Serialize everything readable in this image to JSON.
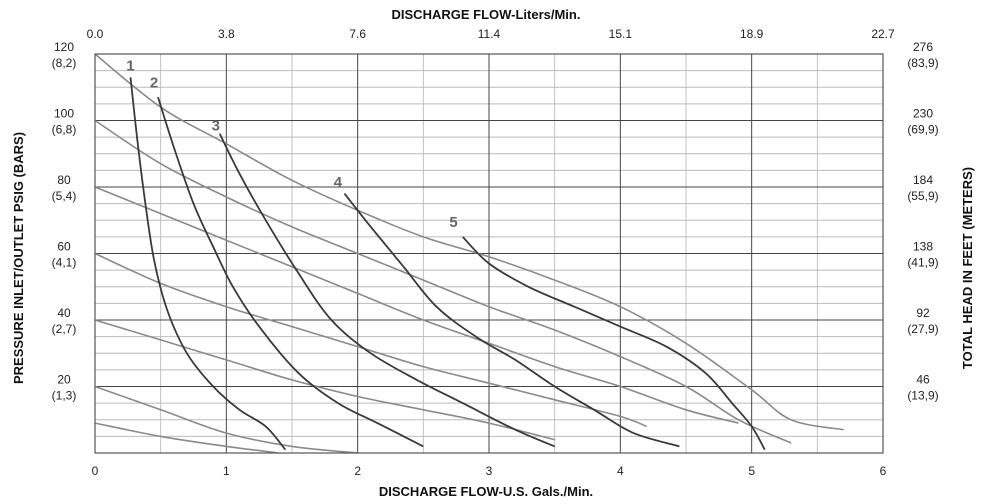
{
  "chart_data": {
    "type": "line",
    "title": "",
    "top_axis": {
      "label": "DISCHARGE FLOW-Liters/Min.",
      "ticks": [
        "0.0",
        "3.8",
        "7.6",
        "11.4",
        "15.1",
        "18.9",
        "22.7"
      ]
    },
    "bottom_axis": {
      "label": "DISCHARGE FLOW-U.S. Gals./Min.",
      "ticks": [
        "0",
        "1",
        "2",
        "3",
        "4",
        "5",
        "6"
      ],
      "xlim": [
        0,
        6
      ]
    },
    "left_axis": {
      "label": "PRESSURE INLET/OUTLET PSIG (BARS)",
      "ylim": [
        0,
        120
      ],
      "ticks": [
        {
          "value": 120,
          "line1": "120",
          "line2": "(8,2)"
        },
        {
          "value": 100,
          "line1": "100",
          "line2": "(6,8)"
        },
        {
          "value": 80,
          "line1": "80",
          "line2": "(5,4)"
        },
        {
          "value": 60,
          "line1": "60",
          "line2": "(4,1)"
        },
        {
          "value": 40,
          "line1": "40",
          "line2": "(2,7)"
        },
        {
          "value": 20,
          "line1": "20",
          "line2": "(1,3)"
        }
      ]
    },
    "right_axis": {
      "label": "TOTAL HEAD IN FEET (METERS)",
      "ticks": [
        {
          "value": 120,
          "line1": "276",
          "line2": "(83,9)"
        },
        {
          "value": 100,
          "line1": "230",
          "line2": "(69,9)"
        },
        {
          "value": 80,
          "line1": "184",
          "line2": "(55,9)"
        },
        {
          "value": 60,
          "line1": "138",
          "line2": "(41,9)"
        },
        {
          "value": 40,
          "line1": "92",
          "line2": "(27,9)"
        },
        {
          "value": 20,
          "line1": "46",
          "line2": "(13,9)"
        }
      ]
    },
    "grid": true,
    "series_air_pressure_lines": [
      {
        "points": [
          [
            0,
            120
          ],
          [
            0.5,
            104
          ],
          [
            1.0,
            93
          ],
          [
            1.5,
            82
          ],
          [
            2.0,
            73
          ],
          [
            2.5,
            65
          ],
          [
            3.0,
            59
          ],
          [
            3.5,
            52
          ],
          [
            4.0,
            44
          ],
          [
            4.5,
            33
          ],
          [
            5.0,
            19
          ],
          [
            5.3,
            10
          ],
          [
            5.7,
            7
          ]
        ]
      },
      {
        "points": [
          [
            0,
            100
          ],
          [
            0.5,
            87
          ],
          [
            1.0,
            77
          ],
          [
            1.5,
            68
          ],
          [
            2.0,
            60
          ],
          [
            2.5,
            52
          ],
          [
            3.0,
            44
          ],
          [
            3.5,
            37
          ],
          [
            4.0,
            29
          ],
          [
            4.5,
            20
          ],
          [
            4.9,
            10
          ],
          [
            5.3,
            3
          ]
        ]
      },
      {
        "points": [
          [
            0,
            80
          ],
          [
            0.5,
            72
          ],
          [
            1.0,
            64
          ],
          [
            1.5,
            56
          ],
          [
            2.0,
            48
          ],
          [
            2.5,
            40
          ],
          [
            3.0,
            33
          ],
          [
            3.5,
            26
          ],
          [
            4.0,
            20
          ],
          [
            4.5,
            13
          ],
          [
            4.9,
            9
          ]
        ]
      },
      {
        "points": [
          [
            0,
            60
          ],
          [
            0.5,
            51
          ],
          [
            1.0,
            44
          ],
          [
            1.5,
            38
          ],
          [
            2.0,
            32
          ],
          [
            2.5,
            26
          ],
          [
            3.0,
            21
          ],
          [
            3.5,
            16
          ],
          [
            4.0,
            11
          ],
          [
            4.2,
            8
          ]
        ]
      },
      {
        "points": [
          [
            0,
            40
          ],
          [
            0.5,
            34
          ],
          [
            1.0,
            28
          ],
          [
            1.5,
            22
          ],
          [
            2.0,
            17
          ],
          [
            2.5,
            13
          ],
          [
            3.0,
            9
          ],
          [
            3.5,
            4
          ]
        ]
      },
      {
        "points": [
          [
            0,
            20
          ],
          [
            0.5,
            13
          ],
          [
            1.0,
            6
          ],
          [
            1.5,
            2
          ],
          [
            2.0,
            0
          ]
        ]
      },
      {
        "points": [
          [
            0,
            9
          ],
          [
            0.5,
            5
          ],
          [
            1.0,
            2
          ],
          [
            1.4,
            0
          ]
        ]
      }
    ],
    "series_curves": [
      {
        "label": "1",
        "label_at": [
          0.27,
          115
        ],
        "points": [
          [
            0.27,
            113
          ],
          [
            0.32,
            95
          ],
          [
            0.38,
            76
          ],
          [
            0.45,
            58
          ],
          [
            0.55,
            43
          ],
          [
            0.7,
            30
          ],
          [
            0.9,
            20
          ],
          [
            1.1,
            13
          ],
          [
            1.3,
            8
          ],
          [
            1.45,
            1
          ]
        ]
      },
      {
        "label": "2",
        "label_at": [
          0.45,
          110
        ],
        "points": [
          [
            0.48,
            107
          ],
          [
            0.6,
            92
          ],
          [
            0.75,
            75
          ],
          [
            0.9,
            62
          ],
          [
            1.05,
            50
          ],
          [
            1.25,
            38
          ],
          [
            1.55,
            24
          ],
          [
            1.85,
            15
          ],
          [
            2.15,
            9
          ],
          [
            2.5,
            2
          ]
        ]
      },
      {
        "label": "3",
        "label_at": [
          0.92,
          97
        ],
        "points": [
          [
            0.95,
            96
          ],
          [
            1.1,
            84
          ],
          [
            1.3,
            70
          ],
          [
            1.55,
            54
          ],
          [
            1.8,
            40
          ],
          [
            2.1,
            30
          ],
          [
            2.45,
            22
          ],
          [
            2.8,
            15
          ],
          [
            3.2,
            7
          ],
          [
            3.5,
            2
          ]
        ]
      },
      {
        "label": "4",
        "label_at": [
          1.85,
          80
        ],
        "points": [
          [
            1.9,
            78
          ],
          [
            2.1,
            68
          ],
          [
            2.35,
            56
          ],
          [
            2.6,
            44
          ],
          [
            2.9,
            35
          ],
          [
            3.2,
            28
          ],
          [
            3.5,
            20
          ],
          [
            3.8,
            13
          ],
          [
            4.1,
            6
          ],
          [
            4.45,
            2
          ]
        ]
      },
      {
        "label": "5",
        "label_at": [
          2.73,
          68
        ],
        "points": [
          [
            2.8,
            65
          ],
          [
            3.0,
            57
          ],
          [
            3.3,
            50
          ],
          [
            3.65,
            44
          ],
          [
            4.0,
            38
          ],
          [
            4.35,
            32
          ],
          [
            4.65,
            24
          ],
          [
            4.85,
            15
          ],
          [
            5.0,
            8
          ],
          [
            5.1,
            1
          ]
        ]
      }
    ]
  }
}
